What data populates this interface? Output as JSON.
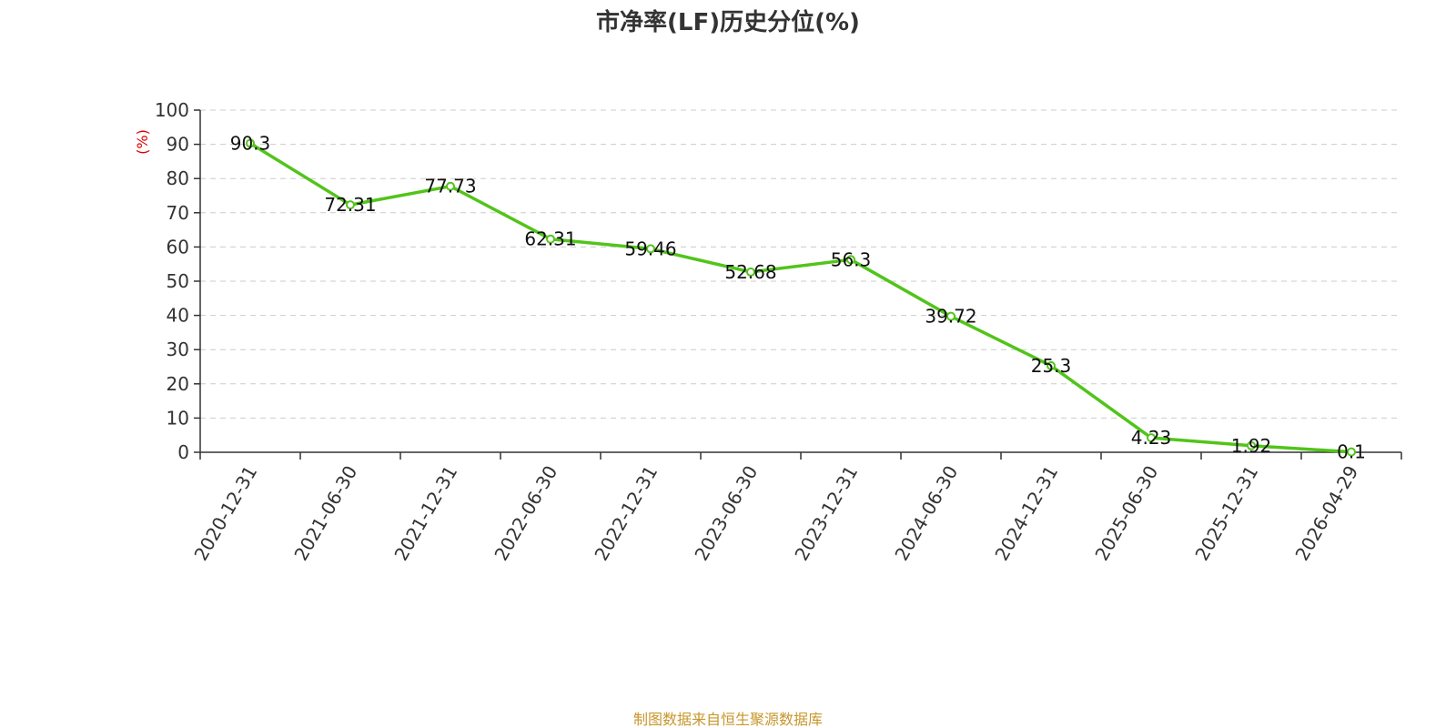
{
  "colors": {
    "line": "#52c41a",
    "source": "#c8962b",
    "ylabel": "#e00000",
    "grid": "#cccccc",
    "axis": "#333333"
  },
  "footer": {
    "source": "制图数据来自恒生聚源数据库"
  },
  "chart_data": {
    "type": "line",
    "title": "市净率(LF)历史分位(%)",
    "xlabel": "",
    "ylabel": "(%)",
    "ylim": [
      0,
      100
    ],
    "yticks": [
      0,
      10,
      20,
      30,
      40,
      50,
      60,
      70,
      80,
      90,
      100
    ],
    "grid": true,
    "categories": [
      "2020-12-31",
      "2021-06-30",
      "2021-12-31",
      "2022-06-30",
      "2022-12-31",
      "2023-06-30",
      "2023-12-31",
      "2024-06-30",
      "2024-12-31",
      "2025-06-30",
      "2025-12-31",
      "2026-04-29"
    ],
    "series": [
      {
        "values": [
          90.3,
          72.31,
          77.73,
          62.31,
          59.46,
          52.68,
          56.3,
          39.72,
          25.3,
          4.23,
          1.92,
          0.1
        ],
        "labels": [
          "90.3",
          "72.31",
          "77.73",
          "62.31",
          "59.46",
          "52.68",
          "56.3",
          "39.72",
          "25.3",
          "4.23",
          "1.92",
          "0.1"
        ]
      }
    ]
  }
}
